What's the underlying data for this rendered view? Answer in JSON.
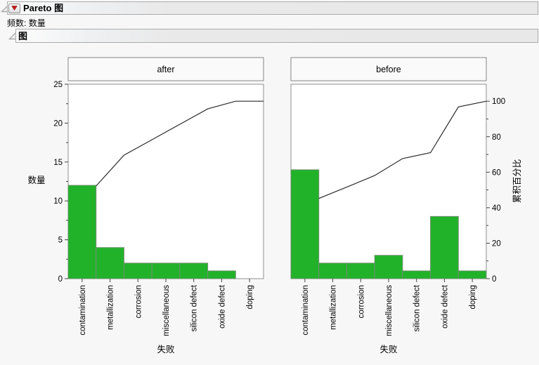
{
  "header": {
    "title": "Pareto 图",
    "disclosure_icon": "open-triangle",
    "menu_icon": "red-triangle"
  },
  "freq": {
    "label": "频数:",
    "value": "数量"
  },
  "section": {
    "title": "图"
  },
  "chart_data": {
    "type": "bar",
    "subtype": "pareto-grouped-panels",
    "categories": [
      "contamination",
      "metallization",
      "corrosion",
      "miscellaneous",
      "silicon defect",
      "oxide defect",
      "doping"
    ],
    "xlabel": "失败",
    "count_axis": {
      "label": "数量",
      "min": 0,
      "max": 25,
      "ticks": [
        0,
        5,
        10,
        15,
        20,
        25
      ],
      "minor_step": 2.5
    },
    "percent_axis": {
      "label": "累积百分比",
      "min": 0,
      "max": 100,
      "ticks": [
        0,
        20,
        40,
        60,
        80,
        100
      ],
      "minor_step": 10
    },
    "legend": "none",
    "grid": false,
    "panels": [
      {
        "title": "after",
        "counts": [
          12,
          4,
          2,
          2,
          2,
          1,
          0
        ],
        "cumulative_percent": [
          52.2,
          69.6,
          78.3,
          87.0,
          95.7,
          100,
          100
        ],
        "total": 23
      },
      {
        "title": "before",
        "counts": [
          14,
          2,
          2,
          3,
          1,
          8,
          1
        ],
        "cumulative_percent": [
          45.2,
          51.6,
          58.1,
          67.7,
          71.0,
          96.8,
          100
        ],
        "total": 31
      }
    ],
    "colors": {
      "bar_fill": "#22b22a",
      "bar_stroke": "#6f8f6f",
      "line": "#2a2a2a",
      "frame": "#8f8f8f",
      "tick": "#444444",
      "panel_title_bg": "#fafafa"
    }
  }
}
